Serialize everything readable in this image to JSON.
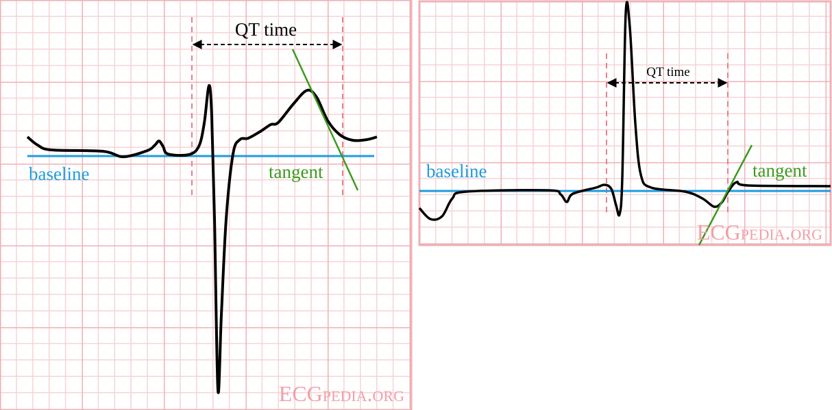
{
  "panels": [
    {
      "qt_label": "QT time",
      "baseline_label": "baseline",
      "tangent_label": "tangent",
      "watermark": "ECGpedia.org"
    },
    {
      "qt_label": "QT time",
      "baseline_label": "baseline",
      "tangent_label": "tangent",
      "watermark": "ECGpedia.org"
    }
  ]
}
